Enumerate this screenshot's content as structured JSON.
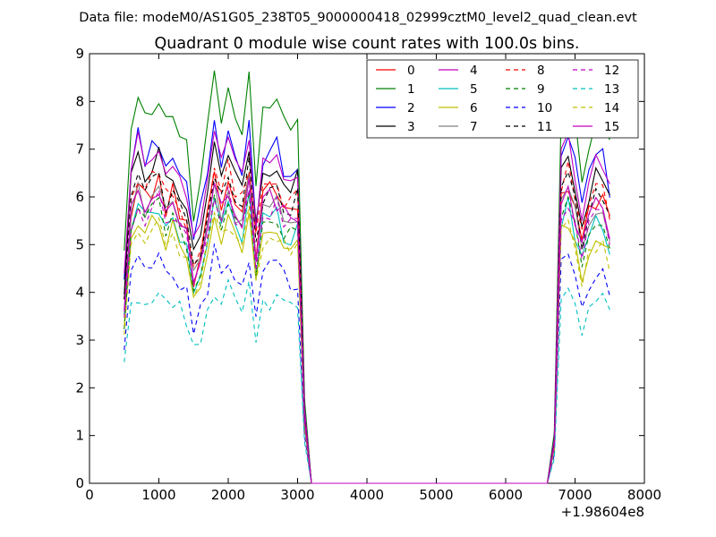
{
  "chart_data": {
    "type": "line",
    "suptitle": "Data file: modeM0/AS1G05_238T05_9000000418_02999cztM0_level2_quad_clean.evt",
    "title": "Quadrant 0 module wise count rates with 100.0s bins.",
    "xlabel": "",
    "ylabel": "",
    "x_offset_label": "+1.98604e8",
    "xlim": [
      0,
      8000
    ],
    "ylim": [
      0,
      9
    ],
    "xticks": [
      0,
      1000,
      2000,
      3000,
      4000,
      5000,
      6000,
      7000,
      8000
    ],
    "yticks": [
      0,
      1,
      2,
      3,
      4,
      5,
      6,
      7,
      8,
      9
    ],
    "x": [
      500,
      600,
      700,
      800,
      900,
      1000,
      1100,
      1200,
      1300,
      1400,
      1500,
      1600,
      1700,
      1800,
      1900,
      2000,
      2100,
      2200,
      2300,
      2400,
      2500,
      2600,
      2700,
      2800,
      2900,
      3000,
      3100,
      3200,
      3300,
      3400,
      3500,
      3600,
      3700,
      3800,
      3900,
      4000,
      4100,
      4200,
      4300,
      4400,
      4500,
      4600,
      4700,
      4800,
      4900,
      5000,
      5100,
      5200,
      5300,
      5400,
      5500,
      5600,
      5700,
      5800,
      5900,
      6000,
      6100,
      6200,
      6300,
      6400,
      6500,
      6600,
      6700,
      6800,
      6900,
      7000,
      7100,
      7200,
      7300,
      7400,
      7500
    ],
    "base_profile": [
      0.55,
      0.85,
      0.93,
      0.88,
      0.9,
      0.93,
      0.85,
      0.89,
      0.83,
      0.79,
      0.64,
      0.72,
      0.83,
      0.96,
      0.87,
      0.94,
      0.85,
      0.84,
      0.96,
      0.72,
      0.88,
      0.9,
      0.9,
      0.85,
      0.84,
      0.86,
      0.2,
      0,
      0,
      0,
      0,
      0,
      0,
      0,
      0,
      0,
      0,
      0,
      0,
      0,
      0,
      0,
      0,
      0,
      0,
      0,
      0,
      0,
      0,
      0,
      0,
      0,
      0,
      0,
      0,
      0,
      0,
      0,
      0,
      0,
      0,
      0,
      0.12,
      0.89,
      0.93,
      0.85,
      0.74,
      0.82,
      0.87,
      0.87,
      0.79
    ],
    "series": [
      {
        "name": "0",
        "color": "#ff0000",
        "dashed": false,
        "scale": 6.8
      },
      {
        "name": "1",
        "color": "#008000",
        "dashed": false,
        "scale": 8.8
      },
      {
        "name": "2",
        "color": "#0000ff",
        "dashed": false,
        "scale": 7.8
      },
      {
        "name": "3",
        "color": "#000000",
        "dashed": false,
        "scale": 7.4
      },
      {
        "name": "4",
        "color": "#bf00bf",
        "dashed": false,
        "scale": 7.7
      },
      {
        "name": "5",
        "color": "#00bfbf",
        "dashed": false,
        "scale": 6.2
      },
      {
        "name": "6",
        "color": "#bfbf00",
        "dashed": false,
        "scale": 6.0
      },
      {
        "name": "7",
        "color": "#808080",
        "dashed": false,
        "scale": 6.6
      },
      {
        "name": "8",
        "color": "#ff0000",
        "dashed": true,
        "scale": 7.0
      },
      {
        "name": "9",
        "color": "#008000",
        "dashed": true,
        "scale": 6.3
      },
      {
        "name": "10",
        "color": "#0000ff",
        "dashed": true,
        "scale": 5.0
      },
      {
        "name": "11",
        "color": "#000000",
        "dashed": true,
        "scale": 6.9
      },
      {
        "name": "12",
        "color": "#bf00bf",
        "dashed": true,
        "scale": 6.4
      },
      {
        "name": "13",
        "color": "#00bfbf",
        "dashed": true,
        "scale": 4.3
      },
      {
        "name": "14",
        "color": "#bfbf00",
        "dashed": true,
        "scale": 5.8
      },
      {
        "name": "15",
        "color": "#bf00bf",
        "dashed": false,
        "scale": 6.6
      }
    ],
    "legend_position": "top-right",
    "legend_columns": 4,
    "grid": false
  }
}
